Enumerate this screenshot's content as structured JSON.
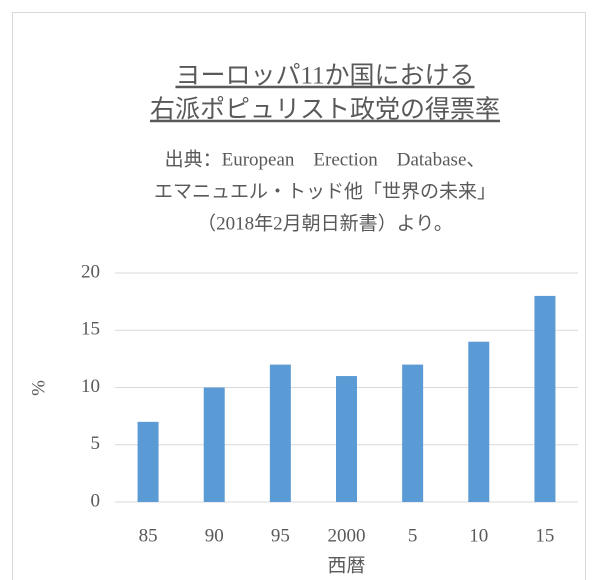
{
  "chart_data": {
    "type": "bar",
    "title": [
      "ヨーロッパ11か国における",
      "右派ポピュリスト政党の得票率"
    ],
    "subtitle": [
      "出典：European　Erection　Database、",
      "エマニュエル・トッド他「世界の未来」",
      "（2018年2月朝日新書）より。"
    ],
    "y_label": "%",
    "x_label": "西暦",
    "categories": [
      "85",
      "90",
      "95",
      "2000",
      "5",
      "10",
      "15"
    ],
    "values": [
      7,
      10,
      12,
      11,
      12,
      14,
      18
    ],
    "color": "#5b9bd5",
    "ylim": [
      0,
      20
    ],
    "yticks": [
      0,
      5,
      10,
      15,
      20
    ],
    "grid": true
  }
}
